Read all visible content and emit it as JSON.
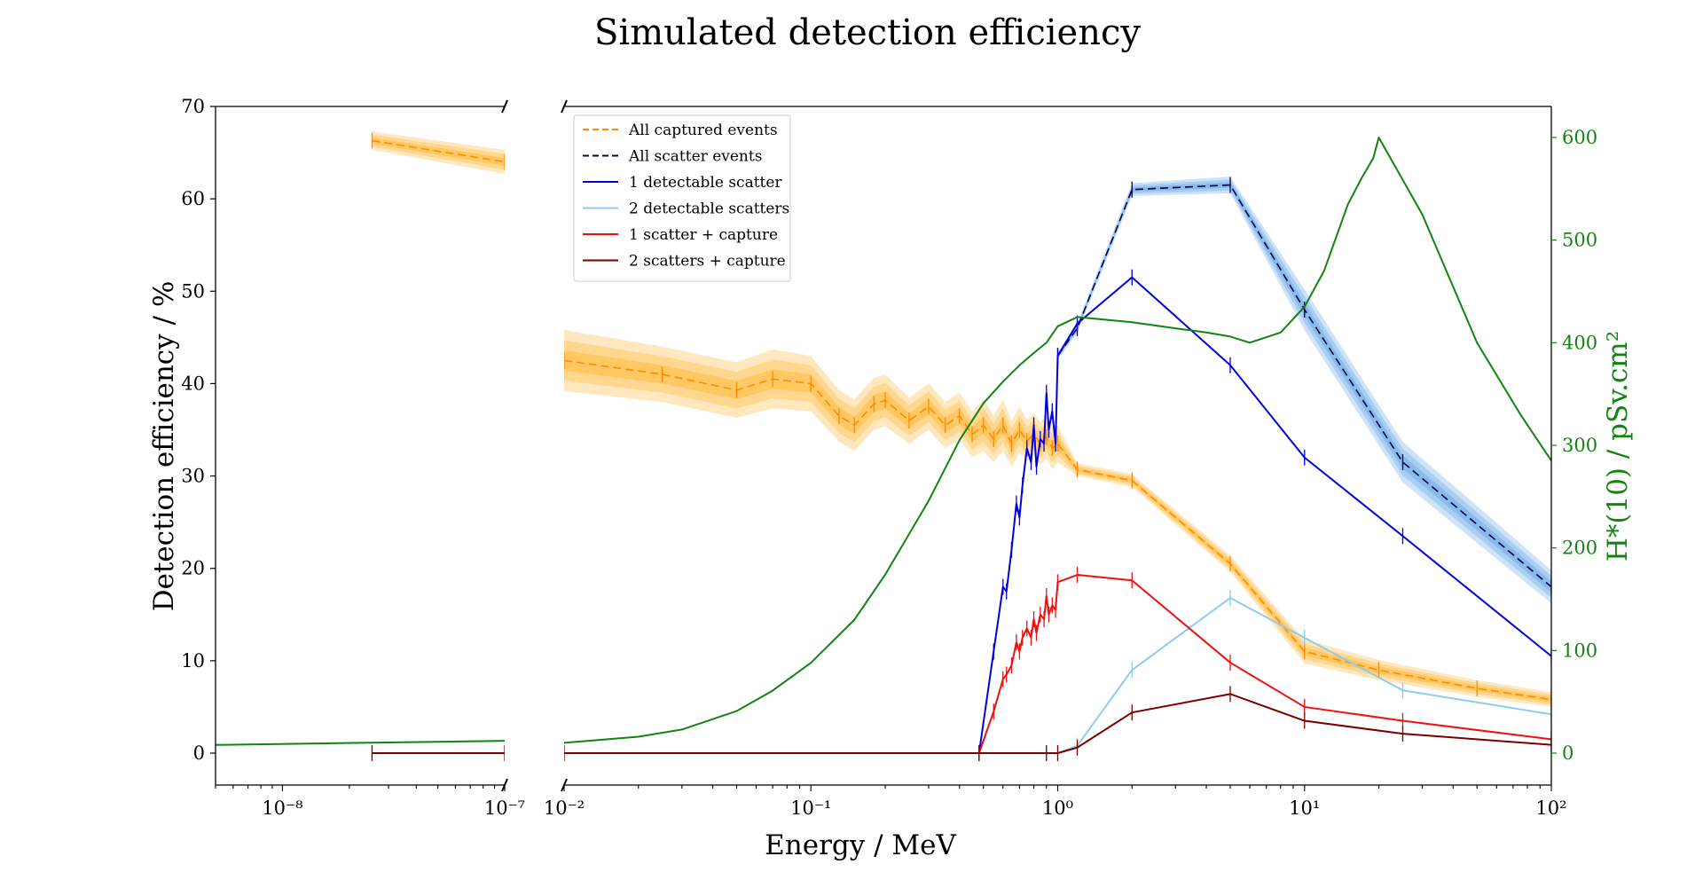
{
  "title": "Simulated detection efficiency",
  "chart_data": {
    "type": "line",
    "title": "Simulated detection efficiency",
    "xlabel": "Energy / MeV",
    "ylabel": "Detection efficiency / %",
    "y2label": "H*(10) / pSv.cm²",
    "x_scale": "log, broken axis",
    "x_segments": [
      [
        5e-09,
        1e-07
      ],
      [
        0.01,
        100
      ]
    ],
    "ylim": [
      -3.5,
      71
    ],
    "y2lim": [
      0,
      600
    ],
    "grid": false,
    "legend_position": "top-left of right panel",
    "yticks": [
      0,
      10,
      20,
      30,
      40,
      50,
      60,
      70
    ],
    "y2ticks": [
      0,
      100,
      200,
      300,
      400,
      500,
      600
    ],
    "xtick_labels_left": [
      "10⁻⁸",
      "10⁻⁷"
    ],
    "xtick_labels_right": [
      "10⁻²",
      "10⁻¹",
      "10⁰",
      "10¹",
      "10²"
    ],
    "series": [
      {
        "name": "All captured events",
        "color": "#ff8c00",
        "style": "dashed",
        "band": true,
        "band_color": "#ffa500",
        "x": [
          2.53e-08,
          1e-07,
          0.01,
          0.025,
          0.05,
          0.07,
          0.1,
          0.13,
          0.15,
          0.18,
          0.2,
          0.25,
          0.3,
          0.35,
          0.4,
          0.45,
          0.5,
          0.55,
          0.6,
          0.65,
          0.7,
          0.75,
          0.8,
          0.85,
          0.9,
          0.95,
          1.0,
          1.2,
          2,
          5,
          10,
          20,
          50,
          100
        ],
        "y": [
          66.3,
          64.0,
          42.5,
          41.0,
          39.3,
          40.5,
          40.0,
          36.5,
          35.5,
          37.8,
          38.2,
          36.0,
          37.5,
          35.5,
          36.5,
          34.5,
          35.5,
          34.0,
          35.5,
          33.5,
          35.0,
          33.8,
          34.5,
          33.5,
          34.2,
          33.0,
          33.5,
          30.7,
          29.5,
          20.5,
          11.0,
          9.0,
          7.0,
          5.8
        ],
        "band_half_width": [
          1.0,
          1.3,
          3.3,
          3.0,
          3.0,
          3.2,
          3.0,
          2.8,
          2.8,
          2.8,
          2.8,
          2.5,
          2.5,
          2.5,
          2.5,
          2.5,
          2.8,
          2.5,
          2.8,
          2.5,
          2.5,
          2.3,
          2.3,
          2.3,
          2.3,
          2.3,
          2.0,
          0.7,
          0.7,
          0.9,
          1.3,
          1.1,
          0.9,
          0.8
        ]
      },
      {
        "name": "All scatter events",
        "color": "#00004b",
        "style": "dashed",
        "band": true,
        "band_color": "#3d8fe0",
        "x": [
          1.0,
          1.2,
          2,
          5,
          10,
          25,
          100
        ],
        "y": [
          43.0,
          46.0,
          61.0,
          61.5,
          48.0,
          31.5,
          18.0
        ],
        "band_half_width": [
          0.4,
          0.5,
          0.7,
          0.9,
          2.2,
          2.2,
          1.8
        ]
      },
      {
        "name": "1 detectable scatter",
        "color": "#0000dd",
        "style": "solid",
        "x": [
          0.48,
          0.55,
          0.6,
          0.62,
          0.65,
          0.68,
          0.7,
          0.72,
          0.75,
          0.78,
          0.8,
          0.82,
          0.85,
          0.88,
          0.9,
          0.92,
          0.95,
          0.98,
          1.0,
          1.2,
          2,
          5,
          10,
          25,
          100
        ],
        "y": [
          0.0,
          11.0,
          18.0,
          17.5,
          22.0,
          27.0,
          25.5,
          29.0,
          33.0,
          31.5,
          35.5,
          31.0,
          34.0,
          33.5,
          39.0,
          35.0,
          37.0,
          33.5,
          43.0,
          46.5,
          51.5,
          42.0,
          32.0,
          23.5,
          10.5
        ]
      },
      {
        "name": "2 detectable scatters",
        "color": "#8ecbf0",
        "style": "solid",
        "x": [
          0.9,
          1.0,
          1.2,
          2,
          5,
          10,
          25,
          100
        ],
        "y": [
          0.0,
          0.0,
          0.8,
          9.0,
          16.8,
          12.5,
          6.8,
          4.2
        ]
      },
      {
        "name": "1 scatter + capture",
        "color": "#ee1111",
        "style": "solid",
        "x": [
          0.48,
          0.55,
          0.6,
          0.62,
          0.65,
          0.68,
          0.7,
          0.72,
          0.75,
          0.78,
          0.8,
          0.82,
          0.85,
          0.88,
          0.9,
          0.92,
          0.95,
          0.98,
          1.0,
          1.2,
          2,
          5,
          10,
          25,
          100
        ],
        "y": [
          0.0,
          4.5,
          8.0,
          8.5,
          9.5,
          12.0,
          11.0,
          12.5,
          13.5,
          12.5,
          14.5,
          13.0,
          15.0,
          14.5,
          17.0,
          15.0,
          16.0,
          15.5,
          18.5,
          19.3,
          18.7,
          9.8,
          5.0,
          3.5,
          1.5
        ]
      },
      {
        "name": "2 scatters + capture",
        "color": "#7a0000",
        "style": "solid",
        "x": [
          2.53e-08,
          1e-07,
          0.01,
          0.48,
          0.9,
          1.0,
          1.2,
          2,
          5,
          10,
          25,
          100
        ],
        "y": [
          0.0,
          0.0,
          0.0,
          0.0,
          0.0,
          0.0,
          0.6,
          4.4,
          6.4,
          3.5,
          2.1,
          0.9
        ]
      },
      {
        "name": "",
        "axis": "right",
        "color": "#128412",
        "style": "solid",
        "x": [
          5e-09,
          1e-07,
          0.01,
          0.02,
          0.03,
          0.05,
          0.07,
          0.1,
          0.15,
          0.2,
          0.3,
          0.4,
          0.5,
          0.6,
          0.7,
          0.8,
          0.9,
          1.0,
          1.2,
          2,
          3,
          4,
          5,
          6,
          8,
          10,
          12,
          15,
          17,
          19,
          20,
          30,
          50,
          75,
          100
        ],
        "y": [
          8,
          12,
          10,
          16,
          23,
          41,
          61,
          88,
          130,
          174,
          246,
          305,
          341,
          362,
          378,
          390,
          400,
          416,
          425,
          420,
          414,
          410,
          406,
          400,
          410,
          435,
          470,
          535,
          560,
          580,
          600,
          525,
          400,
          330,
          285
        ]
      }
    ]
  }
}
